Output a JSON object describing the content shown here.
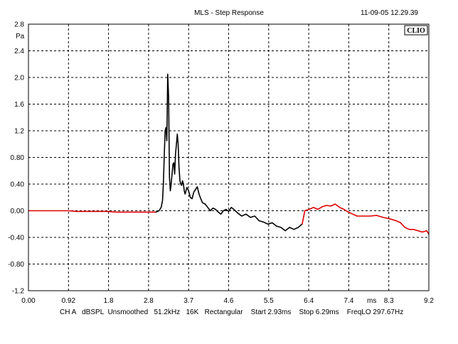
{
  "header": {
    "title": "MLS - Step Response",
    "timestamp": "11-09-05 12.29.39",
    "brand": "CLIO"
  },
  "footer": {
    "settings": "CH A   dBSPL  Unsmoothed   51.2kHz   16K   Rectangular    Start 2.93ms    Stop 6.29ms    FreqLO 297.67Hz"
  },
  "chart_data": {
    "type": "line",
    "title": "MLS - Step Response",
    "xlabel": "ms",
    "ylabel": "Pa",
    "xlim": [
      0.0,
      9.2
    ],
    "ylim": [
      -1.2,
      2.8
    ],
    "grid": true,
    "x_ticks": [
      "0.00",
      "0.92",
      "1.8",
      "2.8",
      "3.7",
      "4.6",
      "5.5",
      "6.4",
      "7.4",
      "8.3",
      "9.2"
    ],
    "y_ticks": [
      "2.8",
      "2.4",
      "2.0",
      "1.6",
      "1.2",
      "0.80",
      "0.40",
      "0.00",
      "-0.40",
      "-0.80",
      "-1.2"
    ],
    "colors": {
      "windowed": "#000000",
      "outside_window": "#dd0000"
    },
    "series": [
      {
        "segment": "before-window",
        "color": "#dd0000",
        "x": [
          0.0,
          0.5,
          0.92,
          1.1,
          1.4,
          1.8,
          2.0,
          2.3,
          2.6,
          2.8,
          2.93
        ],
        "y": [
          0.0,
          0.0,
          0.0,
          -0.01,
          -0.01,
          -0.01,
          -0.02,
          -0.02,
          -0.02,
          -0.02,
          -0.02
        ]
      },
      {
        "segment": "window",
        "color": "#000000",
        "x": [
          2.93,
          3.0,
          3.05,
          3.08,
          3.1,
          3.12,
          3.14,
          3.16,
          3.18,
          3.2,
          3.22,
          3.24,
          3.26,
          3.28,
          3.3,
          3.32,
          3.34,
          3.36,
          3.38,
          3.4,
          3.42,
          3.44,
          3.46,
          3.48,
          3.5,
          3.52,
          3.54,
          3.56,
          3.58,
          3.6,
          3.64,
          3.68,
          3.72,
          3.76,
          3.8,
          3.84,
          3.88,
          3.92,
          3.96,
          4.0,
          4.06,
          4.12,
          4.18,
          4.24,
          4.3,
          4.36,
          4.42,
          4.48,
          4.54,
          4.6,
          4.66,
          4.72,
          4.8,
          4.9,
          5.0,
          5.1,
          5.2,
          5.3,
          5.4,
          5.5,
          5.6,
          5.7,
          5.8,
          5.9,
          6.0,
          6.1,
          6.2,
          6.29
        ],
        "y": [
          -0.02,
          0.0,
          0.05,
          0.15,
          0.4,
          0.8,
          1.2,
          1.25,
          1.05,
          2.05,
          1.7,
          0.5,
          0.3,
          0.4,
          0.55,
          0.7,
          0.72,
          0.55,
          0.85,
          1.0,
          1.15,
          1.0,
          0.65,
          0.45,
          0.4,
          0.38,
          0.45,
          0.4,
          0.3,
          0.25,
          0.35,
          0.3,
          0.2,
          0.18,
          0.28,
          0.32,
          0.36,
          0.25,
          0.18,
          0.12,
          0.1,
          0.05,
          0.0,
          0.04,
          0.02,
          -0.02,
          -0.05,
          0.0,
          0.02,
          -0.01,
          0.05,
          0.02,
          -0.03,
          -0.08,
          -0.05,
          -0.1,
          -0.08,
          -0.15,
          -0.17,
          -0.2,
          -0.18,
          -0.23,
          -0.25,
          -0.3,
          -0.25,
          -0.28,
          -0.25,
          -0.2
        ]
      },
      {
        "segment": "after-window",
        "color": "#dd0000",
        "x": [
          6.29,
          6.35,
          6.45,
          6.55,
          6.65,
          6.75,
          6.85,
          6.95,
          7.05,
          7.15,
          7.25,
          7.35,
          7.45,
          7.55,
          7.7,
          7.85,
          8.0,
          8.15,
          8.3,
          8.45,
          8.55,
          8.65,
          8.75,
          8.85,
          8.95,
          9.05,
          9.15,
          9.2
        ],
        "y": [
          -0.2,
          0.0,
          0.02,
          0.05,
          0.02,
          0.06,
          0.08,
          0.07,
          0.1,
          0.05,
          0.02,
          -0.02,
          -0.05,
          -0.08,
          -0.08,
          -0.08,
          -0.07,
          -0.1,
          -0.12,
          -0.15,
          -0.18,
          -0.25,
          -0.28,
          -0.28,
          -0.3,
          -0.32,
          -0.3,
          -0.35
        ]
      }
    ]
  }
}
